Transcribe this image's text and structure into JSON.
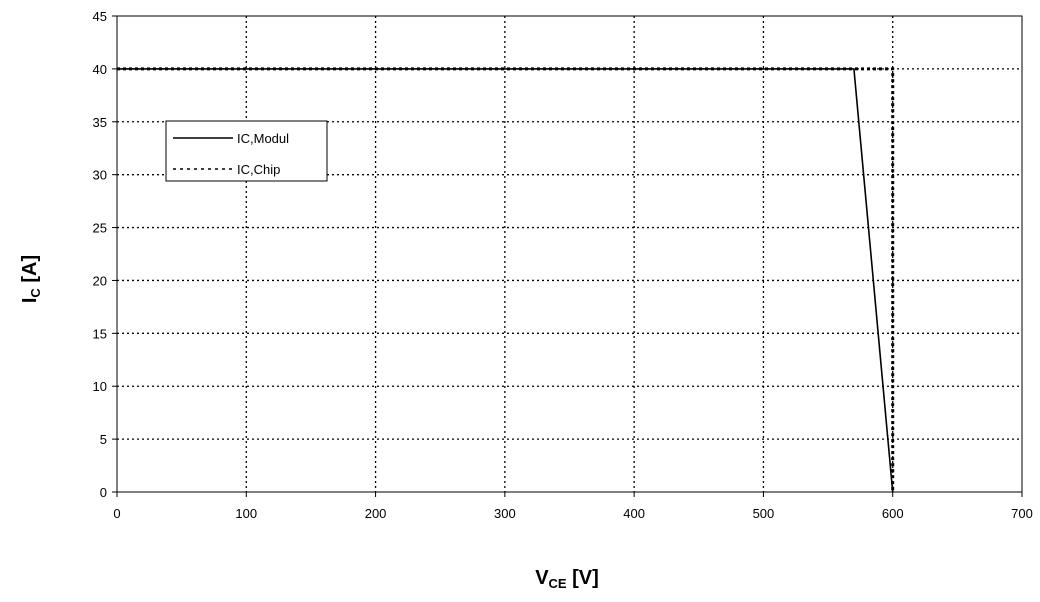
{
  "chart_data": {
    "type": "line",
    "xlabel": {
      "main": "V",
      "sub": "CE",
      "unit": " [V]"
    },
    "ylabel": {
      "main": "I",
      "sub": "C",
      "unit": " [A]"
    },
    "xlim": [
      0,
      700
    ],
    "ylim": [
      0,
      45
    ],
    "xticks": [
      0,
      100,
      200,
      300,
      400,
      500,
      600,
      700
    ],
    "yticks": [
      0,
      5,
      10,
      15,
      20,
      25,
      30,
      35,
      40,
      45
    ],
    "grid": true,
    "legend_placement": "center-left",
    "series": [
      {
        "name": "IC,Modul",
        "style": "solid",
        "color": "#000000",
        "x": [
          0,
          570,
          600
        ],
        "y": [
          40,
          40,
          0
        ]
      },
      {
        "name": "IC,Chip",
        "style": "dotted",
        "color": "#000000",
        "x": [
          0,
          600,
          600
        ],
        "y": [
          40,
          40,
          0
        ]
      }
    ]
  }
}
